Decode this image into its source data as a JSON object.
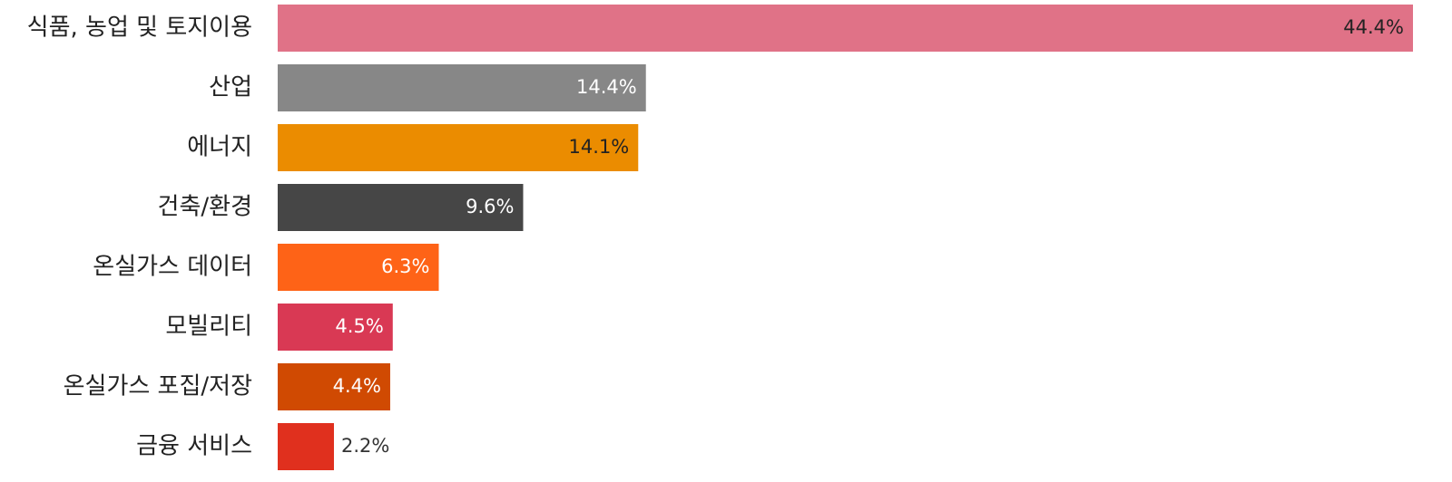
{
  "chart_data": {
    "type": "bar",
    "orientation": "horizontal",
    "categories": [
      "식품, 농업 및 토지이용",
      "산업",
      "에너지",
      "건축/환경",
      "온실가스 데이터",
      "모빌리티",
      "온실가스 포집/저장",
      "금융 서비스"
    ],
    "values": [
      44.4,
      14.4,
      14.1,
      9.6,
      6.3,
      4.5,
      4.4,
      2.2
    ],
    "value_labels": [
      "44.4%",
      "14.4%",
      "14.1%",
      "9.6%",
      "6.3%",
      "4.5%",
      "4.4%",
      "2.2%"
    ],
    "colors": [
      "#e07287",
      "#878787",
      "#eb8c00",
      "#464646",
      "#fe6317",
      "#d93954",
      "#d04a02",
      "#e0301e"
    ]
  }
}
